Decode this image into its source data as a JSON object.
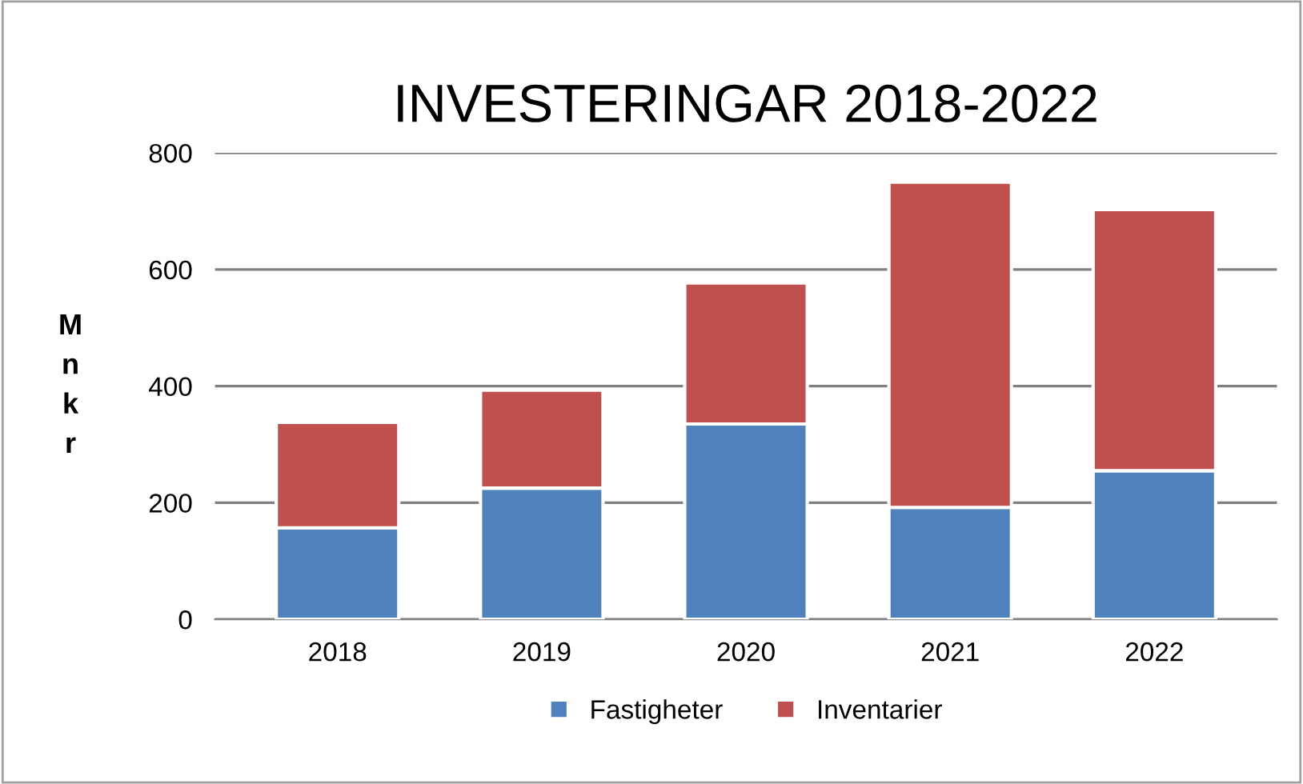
{
  "chart_data": {
    "type": "bar",
    "title": "INVESTERINGAR 2018-2022",
    "ylabel": "Mnkr",
    "categories": [
      "2018",
      "2019",
      "2020",
      "2021",
      "2022"
    ],
    "stacked": true,
    "series": [
      {
        "name": "Fastigheter",
        "color": "#4f81bd",
        "values": [
          157,
          225,
          335,
          192,
          255
        ]
      },
      {
        "name": "Inventarier",
        "color": "#c0504d",
        "values": [
          181,
          168,
          242,
          558,
          448
        ]
      }
    ],
    "ylim": [
      0,
      800
    ],
    "yticks": [
      0,
      200,
      400,
      600,
      800
    ],
    "grid": "y",
    "legend": "bottom"
  }
}
